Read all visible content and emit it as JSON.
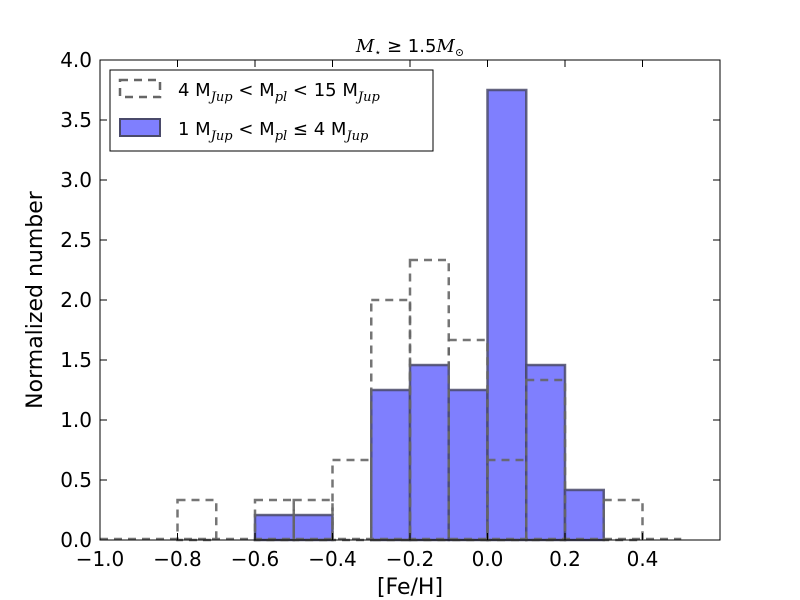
{
  "chart_data": {
    "type": "bar",
    "title": "M⋆ ≥ 1.5M⊙",
    "title_parts": {
      "lhs": "M",
      "star": "⋆",
      "op": " ≥ 1.5",
      "rhs": "M",
      "sun": "⊙"
    },
    "xlabel": "[Fe/H]",
    "ylabel": "Normalized number",
    "xlim": [
      -1.0,
      0.6
    ],
    "ylim": [
      0.0,
      4.0
    ],
    "x_ticks": [
      -1.0,
      -0.8,
      -0.6,
      -0.4,
      -0.2,
      0.0,
      0.2,
      0.4
    ],
    "x_tick_labels": [
      "−1.0",
      "−0.8",
      "−0.6",
      "−0.4",
      "−0.2",
      "0.0",
      "0.2",
      "0.4"
    ],
    "y_ticks": [
      0.0,
      0.5,
      1.0,
      1.5,
      2.0,
      2.5,
      3.0,
      3.5,
      4.0
    ],
    "y_tick_labels": [
      "0.0",
      "0.5",
      "1.0",
      "1.5",
      "2.0",
      "2.5",
      "3.0",
      "3.5",
      "4.0"
    ],
    "grid": false,
    "legend_position": "top-left",
    "bin_edges": [
      -1.0,
      -0.9,
      -0.8,
      -0.7,
      -0.6,
      -0.5,
      -0.4,
      -0.3,
      -0.2,
      -0.1,
      0.0,
      0.1,
      0.2,
      0.3,
      0.4,
      0.5
    ],
    "series": [
      {
        "name": "4 MJup < Mpl < 15 MJup",
        "style": "step-dashed",
        "color": "#666666",
        "values": [
          0.0,
          0.0,
          0.333,
          0.0,
          0.333,
          0.333,
          0.667,
          2.0,
          2.333,
          1.667,
          0.667,
          1.333,
          0.0,
          0.333,
          0.0
        ]
      },
      {
        "name": "1 MJup < Mpl ≤ 4 MJup",
        "style": "filled",
        "color": "#7f7ffe",
        "edge_color": "#4a4a6a",
        "values": [
          0.0,
          0.0,
          0.0,
          0.0,
          0.208,
          0.208,
          0.0,
          1.25,
          1.458,
          1.25,
          3.75,
          1.458,
          0.417,
          0.0,
          0.0
        ]
      }
    ],
    "legend": [
      {
        "pre": "4 M",
        "sub1": "Jup",
        "mid1": " < M",
        "sub2": "pl",
        "mid2": " < 15 M",
        "sub3": "Jup"
      },
      {
        "pre": "1 M",
        "sub1": "Jup",
        "mid1": " < M",
        "sub2": "pl",
        "mid2": " ≤ 4 M",
        "sub3": "Jup"
      }
    ]
  }
}
